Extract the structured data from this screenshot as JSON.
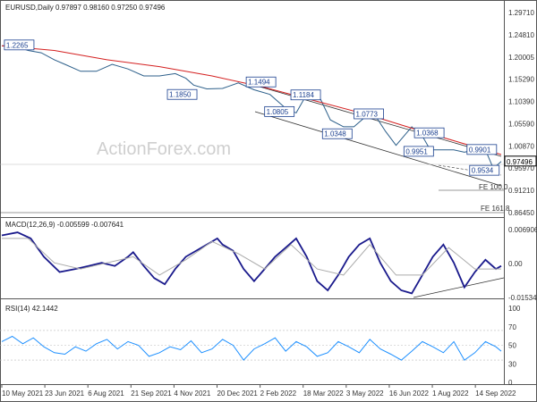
{
  "chart_data": [
    {
      "type": "line",
      "header": "EURUSD,Daily  0.97897 0.98160 0.97250 0.97496",
      "watermark": "ActionForex.com",
      "series": [
        {
          "name": "EURUSD",
          "color": "#2c5f8a",
          "x": [
            0,
            5,
            10,
            15,
            20,
            24,
            30,
            36,
            42,
            48,
            54,
            60,
            66,
            70,
            73,
            78,
            84,
            90,
            96,
            102,
            108,
            112,
            115,
            120,
            125,
            130,
            134,
            138,
            142,
            146,
            150,
            156,
            160,
            163,
            167,
            172,
            176,
            180,
            184,
            187,
            190
          ],
          "y": [
            1.225,
            1.225,
            1.215,
            1.21,
            1.195,
            1.185,
            1.17,
            1.17,
            1.185,
            1.175,
            1.16,
            1.16,
            1.165,
            1.155,
            1.14,
            1.132,
            1.133,
            1.145,
            1.13,
            1.12,
            1.09,
            1.08,
            1.11,
            1.125,
            1.065,
            1.05,
            1.05,
            1.07,
            1.075,
            1.04,
            1.01,
            1.05,
            1.03,
            1.0,
            1.0,
            1.0,
            0.995,
            1.0,
            1.0,
            0.96,
            0.975
          ]
        },
        {
          "name": "SMA",
          "color": "#d42020",
          "x": [
            0,
            20,
            40,
            60,
            80,
            100,
            120,
            140,
            160,
            175,
            190
          ],
          "y": [
            1.225,
            1.215,
            1.195,
            1.18,
            1.16,
            1.135,
            1.105,
            1.075,
            1.04,
            1.015,
            0.99
          ]
        }
      ],
      "annotations": [
        {
          "label": "1.2265",
          "x": 1,
          "y": 1.226
        },
        {
          "label": "1.1850",
          "x": 63,
          "y": 1.119
        },
        {
          "label": "1.1494",
          "x": 93,
          "y": 1.146
        },
        {
          "label": "1.0805",
          "x": 100,
          "y": 1.082
        },
        {
          "label": "1.1184",
          "x": 110,
          "y": 1.118
        },
        {
          "label": "1.0348",
          "x": 122,
          "y": 1.034
        },
        {
          "label": "1.0773",
          "x": 134,
          "y": 1.077
        },
        {
          "label": "1.0368",
          "x": 157,
          "y": 1.036
        },
        {
          "label": "0.9951",
          "x": 153,
          "y": 0.996
        },
        {
          "label": "0.9901",
          "x": 177,
          "y": 1.0
        },
        {
          "label": "0.9534",
          "x": 178,
          "y": 0.955
        }
      ],
      "fib_labels": [
        "FE 100.0",
        "FE 161.8"
      ],
      "y_ticks": [
        "1.29710",
        "1.24810",
        "1.20005",
        "1.15290",
        "1.10390",
        "1.05590",
        "1.00870",
        "0.95970",
        "0.91210",
        "0.86450"
      ],
      "last_price": "0.97496",
      "ylim": [
        0.8645,
        1.2971
      ]
    },
    {
      "type": "line",
      "header": "MACD(12,26,9) -0.005599 -0.007641",
      "y_ticks": [
        "0.006906",
        "0.00",
        "-0.015348"
      ],
      "ylim": [
        -0.015348,
        0.006906
      ],
      "series": [
        {
          "name": "MACD",
          "color": "#1a1a8c",
          "x": [
            0,
            6,
            11,
            16,
            22,
            28,
            33,
            38,
            43,
            48,
            50,
            54,
            58,
            62,
            66,
            70,
            74,
            78,
            82,
            84,
            88,
            92,
            96,
            100,
            104,
            108,
            112,
            116,
            120,
            124,
            128,
            132,
            136,
            140,
            144,
            148,
            152,
            156,
            160,
            164,
            168,
            172,
            176,
            180,
            184,
            188,
            190
          ],
          "y": [
            0.005,
            0.006,
            0.004,
            -0.002,
            -0.007,
            -0.006,
            -0.005,
            -0.004,
            -0.005,
            -0.002,
            -0.0005,
            -0.005,
            -0.009,
            -0.011,
            -0.006,
            -0.002,
            0.0,
            0.002,
            0.004,
            0.002,
            0.0,
            -0.006,
            -0.01,
            -0.006,
            -0.002,
            0.001,
            0.004,
            -0.002,
            -0.01,
            -0.013,
            -0.008,
            -0.002,
            0.002,
            0.004,
            -0.004,
            -0.01,
            -0.013,
            -0.014,
            -0.008,
            -0.002,
            0.002,
            -0.004,
            -0.012,
            -0.007,
            -0.003,
            -0.006,
            -0.005
          ]
        },
        {
          "name": "Signal",
          "color": "#aaaaaa",
          "x": [
            0,
            10,
            20,
            30,
            40,
            50,
            60,
            70,
            80,
            90,
            100,
            110,
            120,
            130,
            140,
            150,
            160,
            170,
            180,
            190
          ],
          "y": [
            0.004,
            0.004,
            -0.004,
            -0.006,
            -0.004,
            -0.002,
            -0.008,
            -0.003,
            0.003,
            -0.001,
            -0.006,
            0.002,
            -0.006,
            -0.008,
            0.002,
            -0.008,
            -0.008,
            0.001,
            -0.006,
            -0.006
          ]
        }
      ]
    },
    {
      "type": "line",
      "header": "RSI(14) 42.1442",
      "y_ticks": [
        "100",
        "70",
        "50",
        "30",
        "0"
      ],
      "ylim": [
        0,
        100
      ],
      "series": [
        {
          "name": "RSI",
          "color": "#1e90ff",
          "x": [
            0,
            4,
            8,
            12,
            16,
            20,
            24,
            28,
            32,
            36,
            40,
            44,
            48,
            52,
            56,
            60,
            64,
            68,
            72,
            76,
            80,
            84,
            88,
            92,
            96,
            100,
            104,
            108,
            112,
            116,
            120,
            124,
            128,
            132,
            136,
            140,
            144,
            148,
            152,
            156,
            160,
            164,
            168,
            172,
            176,
            180,
            184,
            188,
            190
          ],
          "y": [
            55,
            62,
            52,
            60,
            48,
            40,
            38,
            48,
            42,
            52,
            58,
            45,
            55,
            50,
            35,
            40,
            48,
            44,
            56,
            40,
            45,
            58,
            50,
            30,
            45,
            52,
            60,
            42,
            55,
            48,
            35,
            40,
            55,
            48,
            40,
            58,
            45,
            38,
            30,
            42,
            55,
            48,
            40,
            55,
            30,
            40,
            55,
            48,
            42
          ]
        }
      ],
      "levels": [
        70,
        50,
        30
      ]
    }
  ],
  "x_ticks": [
    "10 May 2021",
    "23 Jun 2021",
    "6 Aug 2021",
    "21 Sep 2021",
    "4 Nov 2021",
    "20 Dec 2021",
    "2 Feb 2022",
    "18 Mar 2022",
    "3 May 2022",
    "16 Jun 2022",
    "1 Aug 2022",
    "14 Sep 2022"
  ]
}
